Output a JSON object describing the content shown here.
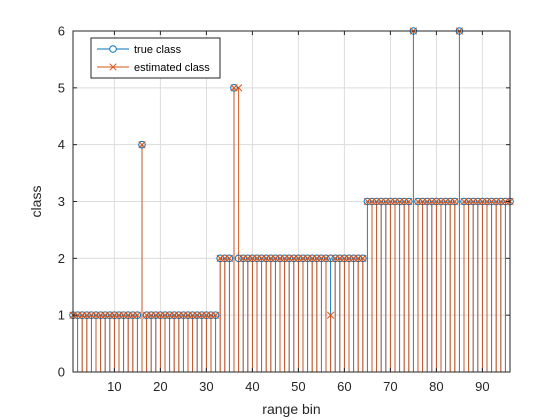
{
  "chart_data": {
    "type": "stem",
    "xlabel": "range bin",
    "ylabel": "class",
    "xlim": [
      1,
      96
    ],
    "ylim": [
      0,
      6
    ],
    "x_ticks": [
      10,
      20,
      30,
      40,
      50,
      60,
      70,
      80,
      90
    ],
    "y_ticks": [
      0,
      1,
      2,
      3,
      4,
      5,
      6
    ],
    "grid": true,
    "legend_position": "top-left",
    "colors": {
      "true_class": "#0072BD",
      "estimated_class": "#D95319",
      "grid": "#dcdcdc",
      "axes": "#262626"
    },
    "x": [
      1,
      2,
      3,
      4,
      5,
      6,
      7,
      8,
      9,
      10,
      11,
      12,
      13,
      14,
      15,
      16,
      17,
      18,
      19,
      20,
      21,
      22,
      23,
      24,
      25,
      26,
      27,
      28,
      29,
      30,
      31,
      32,
      33,
      34,
      35,
      36,
      37,
      38,
      39,
      40,
      41,
      42,
      43,
      44,
      45,
      46,
      47,
      48,
      49,
      50,
      51,
      52,
      53,
      54,
      55,
      56,
      57,
      58,
      59,
      60,
      61,
      62,
      63,
      64,
      65,
      66,
      67,
      68,
      69,
      70,
      71,
      72,
      73,
      74,
      75,
      76,
      77,
      78,
      79,
      80,
      81,
      82,
      83,
      84,
      85,
      86,
      87,
      88,
      89,
      90,
      91,
      92,
      93,
      94,
      95,
      96
    ],
    "series": [
      {
        "name": "true class",
        "marker": "circle",
        "values": [
          1,
          1,
          1,
          1,
          1,
          1,
          1,
          1,
          1,
          1,
          1,
          1,
          1,
          1,
          1,
          4,
          1,
          1,
          1,
          1,
          1,
          1,
          1,
          1,
          1,
          1,
          1,
          1,
          1,
          1,
          1,
          1,
          2,
          2,
          2,
          5,
          2,
          2,
          2,
          2,
          2,
          2,
          2,
          2,
          2,
          2,
          2,
          2,
          2,
          2,
          2,
          2,
          2,
          2,
          2,
          2,
          2,
          2,
          2,
          2,
          2,
          2,
          2,
          2,
          3,
          3,
          3,
          3,
          3,
          3,
          3,
          3,
          3,
          3,
          6,
          3,
          3,
          3,
          3,
          3,
          3,
          3,
          3,
          3,
          6,
          3,
          3,
          3,
          3,
          3,
          3,
          3,
          3,
          3,
          3,
          3
        ]
      },
      {
        "name": "estimated class",
        "marker": "x",
        "values": [
          1,
          1,
          1,
          1,
          1,
          1,
          1,
          1,
          1,
          1,
          1,
          1,
          1,
          1,
          1,
          4,
          1,
          1,
          1,
          1,
          1,
          1,
          1,
          1,
          1,
          1,
          1,
          1,
          1,
          1,
          1,
          1,
          2,
          2,
          2,
          5,
          5,
          2,
          2,
          2,
          2,
          2,
          2,
          2,
          2,
          2,
          2,
          2,
          2,
          2,
          2,
          2,
          2,
          2,
          2,
          2,
          1,
          2,
          2,
          2,
          2,
          2,
          2,
          2,
          3,
          3,
          3,
          3,
          3,
          3,
          3,
          3,
          3,
          3,
          6,
          3,
          3,
          3,
          3,
          3,
          3,
          3,
          3,
          3,
          6,
          3,
          3,
          3,
          3,
          3,
          3,
          3,
          3,
          3,
          3,
          3
        ]
      }
    ]
  }
}
